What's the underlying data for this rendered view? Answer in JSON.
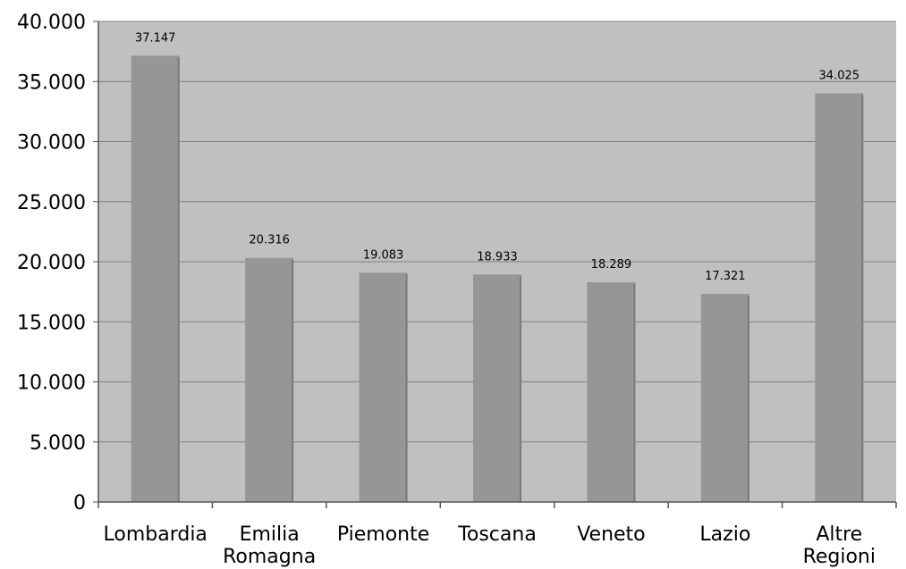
{
  "chart_data": {
    "type": "bar",
    "categories": [
      [
        "Lombardia"
      ],
      [
        "Emilia",
        "Romagna"
      ],
      [
        "Piemonte"
      ],
      [
        "Toscana"
      ],
      [
        "Veneto"
      ],
      [
        "Lazio"
      ],
      [
        "Altre",
        "Regioni"
      ]
    ],
    "values": [
      37147,
      20316,
      19083,
      18933,
      18289,
      17321,
      34025
    ],
    "data_labels": [
      "37.147",
      "20.316",
      "19.083",
      "18.933",
      "18.289",
      "17.321",
      "34.025"
    ],
    "ylim": [
      0,
      40000
    ],
    "yticks": [
      0,
      5000,
      10000,
      15000,
      20000,
      25000,
      30000,
      35000,
      40000
    ],
    "ytick_labels": [
      "0",
      "5.000",
      "10.000",
      "15.000",
      "20.000",
      "25.000",
      "30.000",
      "35.000",
      "40.000"
    ],
    "grid": true,
    "legend": "none",
    "title": "",
    "xlabel": "",
    "ylabel": "",
    "colors": {
      "plot_background": "#c0c0c0",
      "bar": "#969696",
      "bar_shade": "#7a7a7a",
      "gridline": "#808080",
      "axis": "#555555"
    }
  }
}
